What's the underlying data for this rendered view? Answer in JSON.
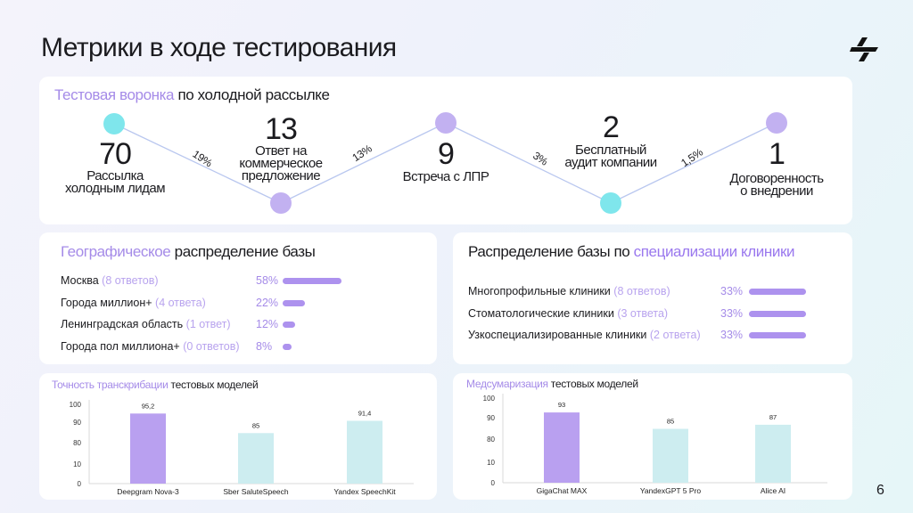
{
  "page_title": "Метрики в ходе тестирования",
  "page_number": "6",
  "funnel": {
    "title_accent": "Тестовая воронка",
    "title_rest": " по холодной рассылке",
    "stages": [
      {
        "value": "70",
        "label": "Рассылка\nхолодным лидам"
      },
      {
        "value": "13",
        "label": "Ответ на\nкоммерческое\nпредложение"
      },
      {
        "value": "9",
        "label": "Встреча с ЛПР"
      },
      {
        "value": "2",
        "label": "Бесплатный\nаудит компании"
      },
      {
        "value": "1",
        "label": "Договоренность\nо внедрении"
      }
    ],
    "conversions": [
      "19%",
      "13%",
      "3%",
      "1,5%"
    ],
    "colors": {
      "cyan": "#7fe6ec",
      "purple": "#c2b1f1",
      "line": "#b9c7ef"
    }
  },
  "geo": {
    "title_accent": "Географическое",
    "title_rest": " распределение базы",
    "rows": [
      {
        "name": "Москва",
        "note": "(8 ответов)",
        "pct": "58%",
        "value": 58
      },
      {
        "name": "Города миллион+",
        "note": "(4 ответа)",
        "pct": "22%",
        "value": 22
      },
      {
        "name": "Ленинградская область",
        "note": "(1 ответ)",
        "pct": "12%",
        "value": 12
      },
      {
        "name": "Города пол миллиона+",
        "note": "(0 ответов)",
        "pct": "8%",
        "value": 8
      }
    ]
  },
  "spec": {
    "title_rest": "Распределение базы по ",
    "title_accent": "специализации клиники",
    "rows": [
      {
        "name": "Многопрофильные клиники",
        "note": "(8 ответов)",
        "pct": "33%",
        "value": 33
      },
      {
        "name": "Стоматологические клиники",
        "note": "(3 ответа)",
        "pct": "33%",
        "value": 33
      },
      {
        "name": "Узкоспециализированные клиники",
        "note": "(2 ответа)",
        "pct": "33%",
        "value": 33
      }
    ]
  },
  "transcription": {
    "title_accent": "Точность транскрибации",
    "title_rest": " тестовых моделей"
  },
  "summarization": {
    "title_accent": "Медсумаризация",
    "title_rest": " тестовых моделей"
  },
  "chart_data": [
    {
      "type": "bar",
      "title": "Точность транскрибации тестовых моделей",
      "categories": [
        "Deepgram Nova-3",
        "Sber SaluteSpeech",
        "Yandex SpeechKit"
      ],
      "values": [
        95.2,
        85,
        91.4
      ],
      "value_labels": [
        "95,2",
        "85",
        "91,4"
      ],
      "y_ticks": [
        "100",
        "90",
        "80",
        "10",
        "0"
      ],
      "colors": [
        "#b9a0f0",
        "#cdedf0",
        "#cdedf0"
      ]
    },
    {
      "type": "bar",
      "title": "Медсумаризация тестовых моделей",
      "categories": [
        "GigaChat MAX",
        "YandexGPT 5 Pro",
        "Alice AI"
      ],
      "values": [
        93,
        85,
        87
      ],
      "value_labels": [
        "93",
        "85",
        "87"
      ],
      "y_ticks": [
        "100",
        "90",
        "80",
        "10",
        "0"
      ],
      "colors": [
        "#b9a0f0",
        "#cdedf0",
        "#cdedf0"
      ]
    }
  ]
}
